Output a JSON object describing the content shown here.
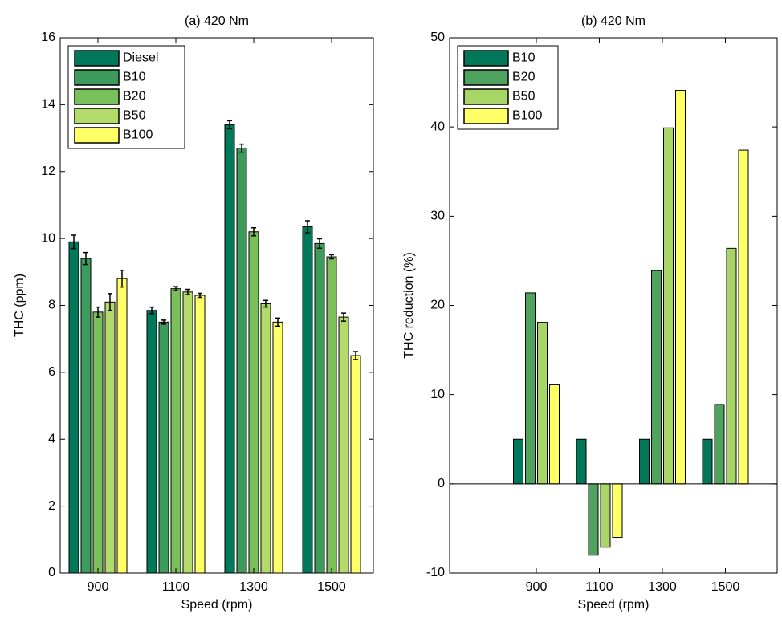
{
  "chart_data": [
    {
      "type": "bar",
      "title": "(a) 420 Nm",
      "x_label": "Speed (rpm)",
      "y_label": "THC (ppm)",
      "categories": [
        "900",
        "1100",
        "1300",
        "1500"
      ],
      "series": [
        {
          "name": "Diesel",
          "color": "#00795b",
          "values": [
            9.9,
            7.85,
            13.4,
            10.35
          ],
          "errors": [
            0.2,
            0.1,
            0.12,
            0.18
          ]
        },
        {
          "name": "B10",
          "color": "#3d9c5c",
          "values": [
            9.4,
            7.5,
            12.7,
            9.85
          ],
          "errors": [
            0.18,
            0.06,
            0.12,
            0.14
          ]
        },
        {
          "name": "B20",
          "color": "#79bf5a",
          "values": [
            7.8,
            8.5,
            10.2,
            9.45
          ],
          "errors": [
            0.15,
            0.06,
            0.12,
            0.06
          ]
        },
        {
          "name": "B50",
          "color": "#b3db6a",
          "values": [
            8.1,
            8.4,
            8.05,
            7.65
          ],
          "errors": [
            0.25,
            0.08,
            0.1,
            0.12
          ]
        },
        {
          "name": "B100",
          "color": "#ffff66",
          "values": [
            8.8,
            8.3,
            7.5,
            6.5
          ],
          "errors": [
            0.25,
            0.06,
            0.12,
            0.12
          ]
        }
      ],
      "ylim": [
        0,
        16
      ],
      "yticks": [
        0,
        2,
        4,
        6,
        8,
        10,
        12,
        14,
        16
      ],
      "legend": "upper left"
    },
    {
      "type": "bar",
      "title": "(b) 420 Nm",
      "x_label": "Speed (rpm)",
      "y_label": "THC reduction (%)",
      "categories": [
        "900",
        "1100",
        "1300",
        "1500"
      ],
      "series": [
        {
          "name": "B10",
          "color": "#00795b",
          "values": [
            5,
            5,
            5,
            5
          ]
        },
        {
          "name": "B20",
          "color": "#4fa35e",
          "values": [
            21.4,
            -8,
            23.9,
            8.9
          ]
        },
        {
          "name": "B50",
          "color": "#a8d666",
          "values": [
            18.1,
            -7.1,
            39.9,
            26.4
          ]
        },
        {
          "name": "B100",
          "color": "#ffff66",
          "values": [
            11.1,
            -6,
            44.1,
            37.4
          ]
        }
      ],
      "ylim": [
        -10,
        50
      ],
      "yticks": [
        -10,
        0,
        10,
        20,
        30,
        40,
        50
      ],
      "legend": "upper left"
    }
  ]
}
